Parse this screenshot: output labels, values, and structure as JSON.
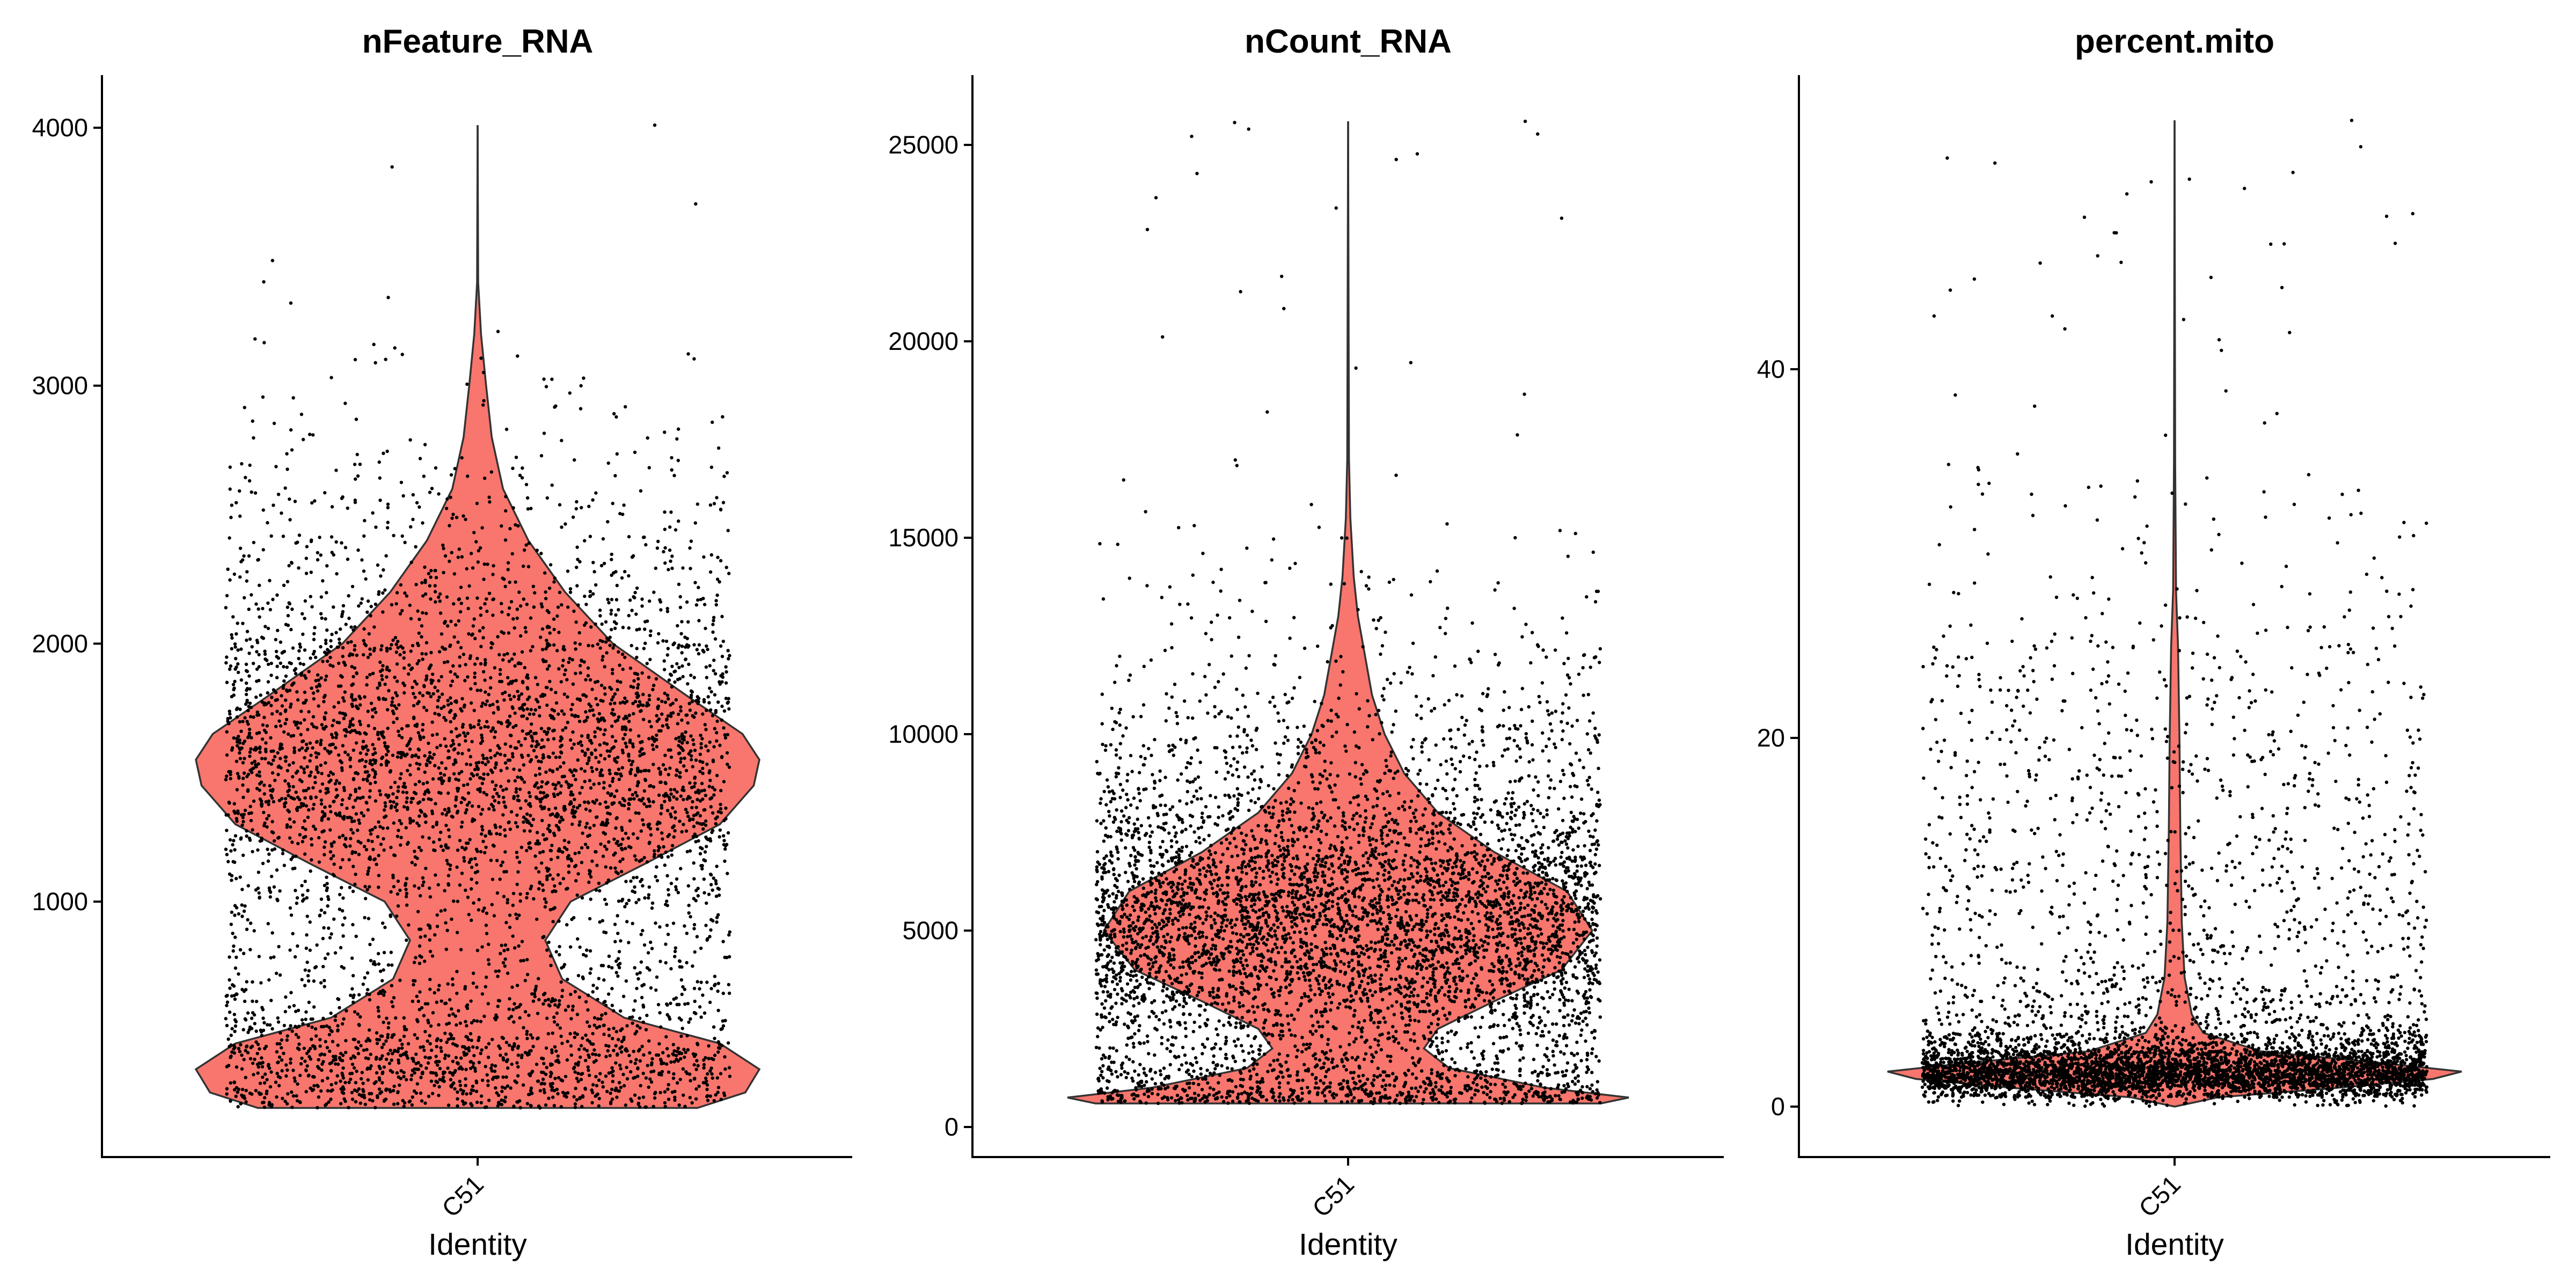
{
  "chart_data": [
    {
      "type": "violin",
      "title": "nFeature_RNA",
      "xlabel": "Identity",
      "ylabel": "",
      "categories": [
        "C51"
      ],
      "ylim": [
        200,
        4010
      ],
      "yticks": [
        1000,
        2000,
        3000,
        4000
      ],
      "fill_color": "#F8766D",
      "density_profile": [
        [
          200,
          0.78
        ],
        [
          260,
          0.95
        ],
        [
          350,
          1.0
        ],
        [
          450,
          0.86
        ],
        [
          550,
          0.52
        ],
        [
          700,
          0.3
        ],
        [
          850,
          0.24
        ],
        [
          1000,
          0.33
        ],
        [
          1150,
          0.6
        ],
        [
          1300,
          0.86
        ],
        [
          1450,
          0.98
        ],
        [
          1550,
          1.0
        ],
        [
          1650,
          0.94
        ],
        [
          1800,
          0.74
        ],
        [
          2000,
          0.48
        ],
        [
          2200,
          0.31
        ],
        [
          2400,
          0.18
        ],
        [
          2600,
          0.09
        ],
        [
          2800,
          0.05
        ],
        [
          3000,
          0.03
        ],
        [
          3200,
          0.012
        ],
        [
          3400,
          0.002
        ],
        [
          4010,
          0.0
        ]
      ],
      "points_shown": 5200,
      "max_value": 4010
    },
    {
      "type": "violin",
      "title": "nCount_RNA",
      "xlabel": "Identity",
      "ylabel": "",
      "categories": [
        "C51"
      ],
      "ylim": [
        600,
        25600
      ],
      "yticks": [
        0,
        5000,
        10000,
        15000,
        20000,
        25000
      ],
      "fill_color": "#F8766D",
      "density_profile": [
        [
          600,
          0.9
        ],
        [
          750,
          1.0
        ],
        [
          1000,
          0.7
        ],
        [
          1500,
          0.36
        ],
        [
          2000,
          0.27
        ],
        [
          2500,
          0.32
        ],
        [
          3200,
          0.52
        ],
        [
          4000,
          0.76
        ],
        [
          5000,
          0.87
        ],
        [
          6000,
          0.78
        ],
        [
          7000,
          0.52
        ],
        [
          8000,
          0.32
        ],
        [
          9000,
          0.2
        ],
        [
          10000,
          0.13
        ],
        [
          11000,
          0.085
        ],
        [
          12000,
          0.06
        ],
        [
          13000,
          0.035
        ],
        [
          14000,
          0.02
        ],
        [
          15500,
          0.008
        ],
        [
          17000,
          0.003
        ],
        [
          25600,
          0.0
        ]
      ],
      "points_shown": 5800,
      "max_value": 25600
    },
    {
      "type": "violin",
      "title": "percent.mito",
      "xlabel": "Identity",
      "ylabel": "",
      "categories": [
        "C51"
      ],
      "ylim": [
        0,
        53.5
      ],
      "yticks": [
        0,
        20,
        40
      ],
      "fill_color": "#F8766D",
      "density_profile": [
        [
          0,
          0.0
        ],
        [
          0.5,
          0.15
        ],
        [
          1.0,
          0.55
        ],
        [
          1.5,
          0.9
        ],
        [
          1.9,
          1.0
        ],
        [
          2.4,
          0.7
        ],
        [
          3.0,
          0.3
        ],
        [
          4.0,
          0.1
        ],
        [
          5.0,
          0.06
        ],
        [
          7.0,
          0.035
        ],
        [
          10.0,
          0.025
        ],
        [
          15.0,
          0.02
        ],
        [
          20.0,
          0.017
        ],
        [
          25.0,
          0.012
        ],
        [
          28.0,
          0.005
        ],
        [
          35.0,
          0.002
        ],
        [
          53.5,
          0.0
        ]
      ],
      "points_shown": 5600,
      "max_value": 53.5
    }
  ]
}
